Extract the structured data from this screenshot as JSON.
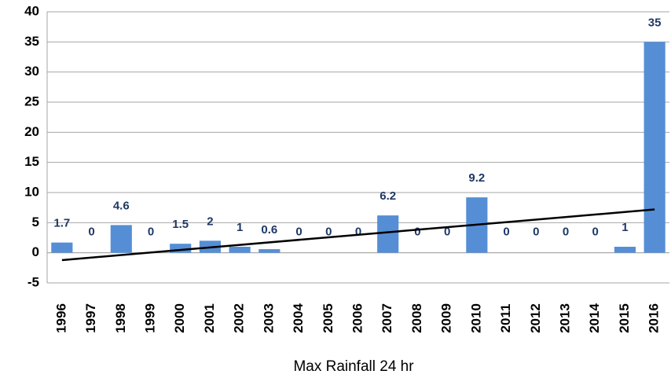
{
  "chart_data": {
    "type": "bar",
    "x_label": "Max  Rainfall 24 hr",
    "categories": [
      "1996",
      "1997",
      "1998",
      "1999",
      "2000",
      "2001",
      "2002",
      "2003",
      "2004",
      "2005",
      "2006",
      "2007",
      "2008",
      "2009",
      "2010",
      "2011",
      "2012",
      "2013",
      "2014",
      "2015",
      "2016"
    ],
    "values": [
      1.7,
      0,
      4.6,
      0,
      1.5,
      2,
      1,
      0.6,
      0,
      0,
      0,
      6.2,
      0,
      0,
      9.2,
      0,
      0,
      0,
      0,
      1,
      35
    ],
    "color": "#558ed5",
    "trendline": {
      "color": "#000000",
      "values": [
        -1.21,
        7.19
      ]
    },
    "ylim": [
      -5,
      40
    ],
    "yticks": [
      -5,
      0,
      5,
      10,
      15,
      20,
      25,
      30,
      35,
      40
    ],
    "grid": true
  }
}
